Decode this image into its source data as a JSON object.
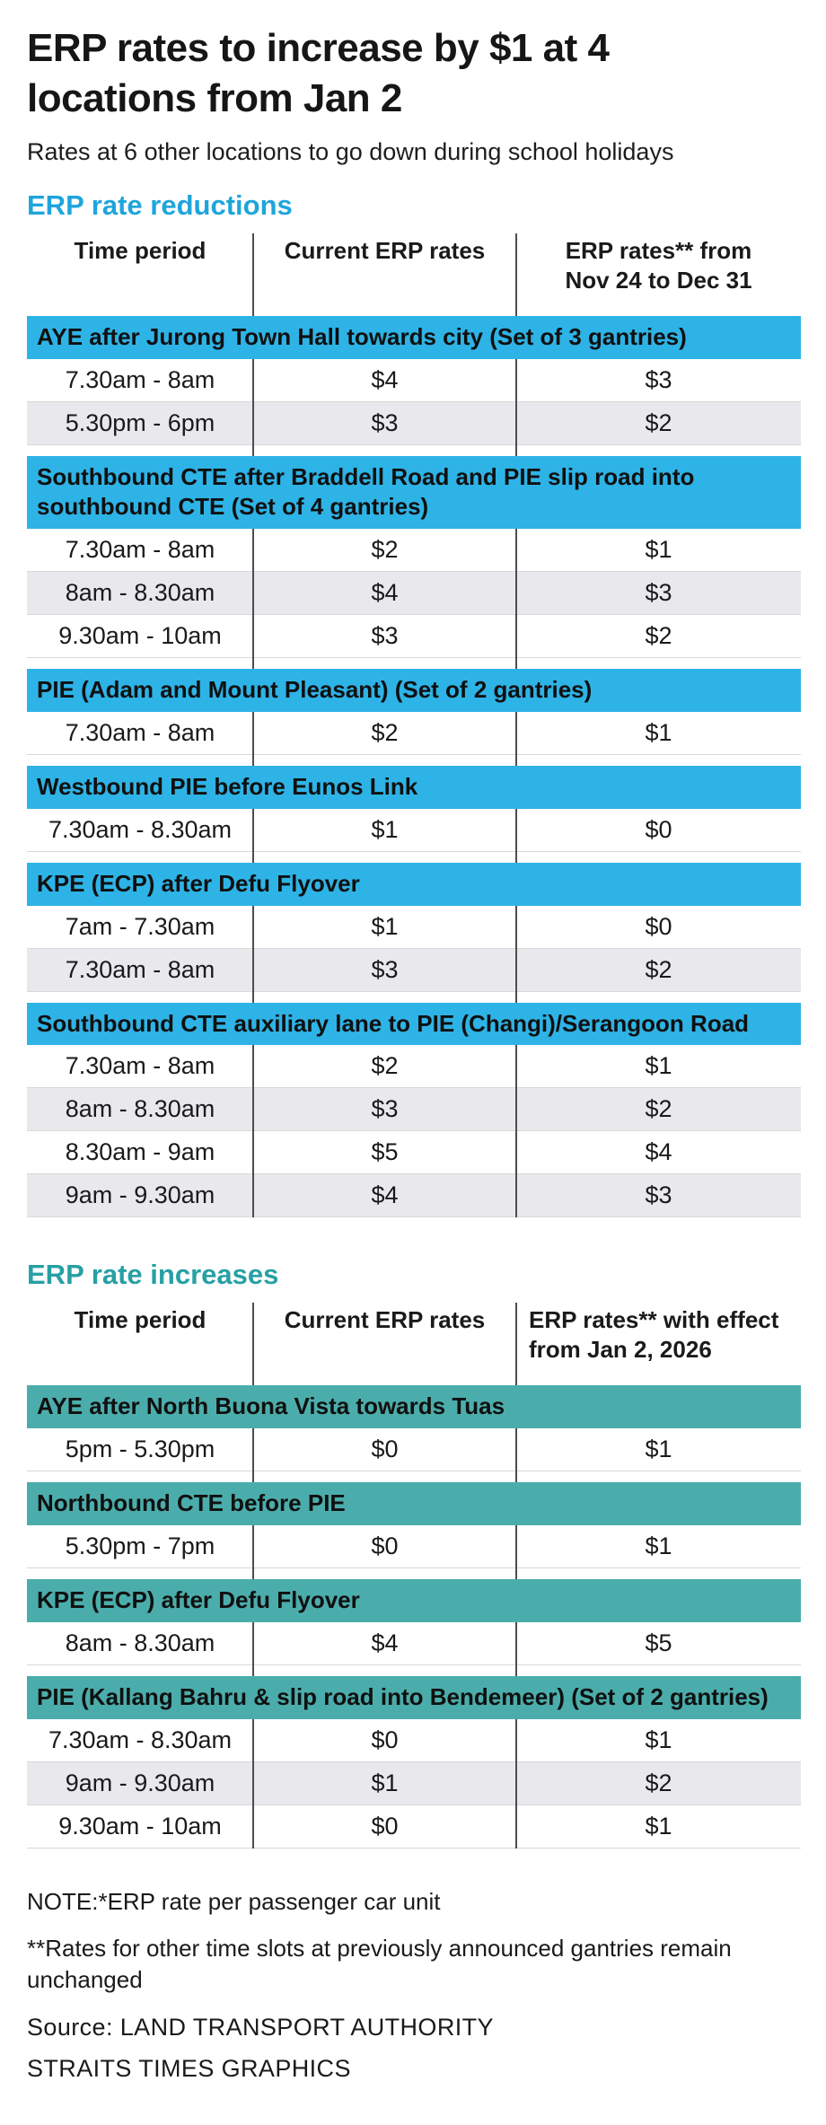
{
  "header": {
    "title": "ERP rates to increase by $1 at 4\nlocations from Jan 2",
    "subtitle": "Rates at 6 other locations to go down during school holidays"
  },
  "colors": {
    "reductions_accent": "#1ea5dc",
    "reductions_bar": "#2eb3e6",
    "increases_accent": "#27a0a4",
    "increases_bar": "#4badab",
    "row_alt": "#e9e9ed",
    "text": "#1a1a1a"
  },
  "chart_data": [
    {
      "id": "reductions",
      "type": "table",
      "title": "ERP rate reductions",
      "accent_color": "#1ea5dc",
      "bar_color": "#2eb3e6",
      "col3_align": "center",
      "columns": [
        "Time period",
        "Current ERP rates",
        "ERP rates** from\nNov 24 to Dec 31"
      ],
      "groups": [
        {
          "label": "AYE after Jurong Town Hall towards city (Set of 3 gantries)",
          "rows": [
            [
              "7.30am - 8am",
              "$4",
              "$3"
            ],
            [
              "5.30pm - 6pm",
              "$3",
              "$2"
            ]
          ]
        },
        {
          "label": "Southbound CTE after Braddell Road and PIE slip road into southbound CTE (Set of 4 gantries)",
          "rows": [
            [
              "7.30am - 8am",
              "$2",
              "$1"
            ],
            [
              "8am - 8.30am",
              "$4",
              "$3"
            ],
            [
              "9.30am - 10am",
              "$3",
              "$2"
            ]
          ]
        },
        {
          "label": "PIE (Adam and Mount Pleasant) (Set of 2 gantries)",
          "rows": [
            [
              "7.30am - 8am",
              "$2",
              "$1"
            ]
          ]
        },
        {
          "label": "Westbound PIE before Eunos Link",
          "rows": [
            [
              "7.30am - 8.30am",
              "$1",
              "$0"
            ]
          ]
        },
        {
          "label": "KPE (ECP) after Defu Flyover",
          "rows": [
            [
              "7am - 7.30am",
              "$1",
              "$0"
            ],
            [
              "7.30am - 8am",
              "$3",
              "$2"
            ]
          ]
        },
        {
          "label": "Southbound CTE auxiliary lane to PIE (Changi)/Serangoon Road",
          "rows": [
            [
              "7.30am - 8am",
              "$2",
              "$1"
            ],
            [
              "8am - 8.30am",
              "$3",
              "$2"
            ],
            [
              "8.30am - 9am",
              "$5",
              "$4"
            ],
            [
              "9am - 9.30am",
              "$4",
              "$3"
            ]
          ]
        }
      ]
    },
    {
      "id": "increases",
      "type": "table",
      "title": "ERP rate increases",
      "accent_color": "#27a0a4",
      "bar_color": "#4badab",
      "col3_align": "left",
      "columns": [
        "Time period",
        "Current ERP rates",
        "ERP rates** with effect\nfrom Jan 2, 2026"
      ],
      "groups": [
        {
          "label": "AYE after North Buona Vista towards Tuas",
          "rows": [
            [
              "5pm - 5.30pm",
              "$0",
              "$1"
            ]
          ]
        },
        {
          "label": "Northbound CTE before PIE",
          "rows": [
            [
              "5.30pm - 7pm",
              "$0",
              "$1"
            ]
          ]
        },
        {
          "label": "KPE (ECP) after Defu Flyover",
          "rows": [
            [
              "8am - 8.30am",
              "$4",
              "$5"
            ]
          ]
        },
        {
          "label": "PIE (Kallang Bahru & slip road into Bendemeer) (Set of 2 gantries)",
          "rows": [
            [
              "7.30am - 8.30am",
              "$0",
              "$1"
            ],
            [
              "9am - 9.30am",
              "$1",
              "$2"
            ],
            [
              "9.30am - 10am",
              "$0",
              "$1"
            ]
          ]
        }
      ]
    }
  ],
  "footnotes": [
    "NOTE:*ERP rate per passenger car unit",
    "**Rates for other time slots at previously announced gantries remain unchanged"
  ],
  "source": "Source: LAND TRANSPORT AUTHORITY",
  "credit": "STRAITS TIMES GRAPHICS"
}
